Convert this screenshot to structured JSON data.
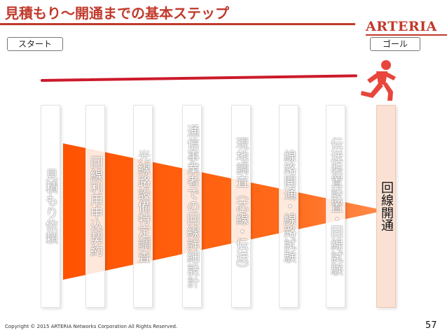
{
  "header": {
    "title": "見積もり〜開通までの基本ステップ",
    "logo": "ARTERIA"
  },
  "labels": {
    "start": "スタート",
    "goal": "ゴール"
  },
  "steps": [
    "見積もり依頼",
    "回線利用申込契約",
    "光線路設備特定調査",
    "通信事業者での回線詳細設計",
    "現地調査（芯線・伝送）",
    "線路開通・線路試験",
    "伝送装置設置・回線試験",
    "回線開通"
  ],
  "footer": {
    "copyright": "Copyright © 2015 ARTERIA Networks Corporation All Rights Reserved.",
    "page": "57"
  },
  "colors": {
    "accent": "#c0392b",
    "wedge": "#ff5a00",
    "timeline": "#cc1a2a",
    "final_card": "#fae1d4"
  },
  "icons": {
    "runner": "running-person-icon"
  }
}
